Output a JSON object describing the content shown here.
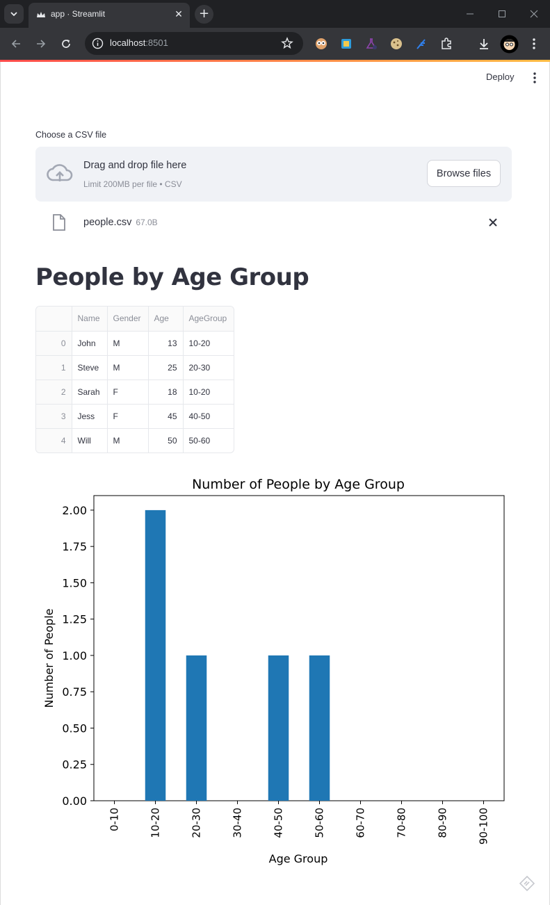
{
  "browser": {
    "tab_title": "app · Streamlit",
    "url_host": "localhost",
    "url_port": ":8501"
  },
  "app_header": {
    "deploy_label": "Deploy"
  },
  "uploader": {
    "label": "Choose a CSV file",
    "drop_title": "Drag and drop file here",
    "drop_subtitle": "Limit 200MB per file • CSV",
    "browse_label": "Browse files",
    "file_name": "people.csv",
    "file_size": "67.0B"
  },
  "page_title": "People by Age Group",
  "dataframe": {
    "columns": [
      "",
      "Name",
      "Gender",
      "Age",
      "AgeGroup"
    ],
    "rows": [
      {
        "index": "0",
        "name": "John",
        "gender": "M",
        "age": "13",
        "group": "10-20"
      },
      {
        "index": "1",
        "name": "Steve",
        "gender": "M",
        "age": "25",
        "group": "20-30"
      },
      {
        "index": "2",
        "name": "Sarah",
        "gender": "F",
        "age": "18",
        "group": "10-20"
      },
      {
        "index": "3",
        "name": "Jess",
        "gender": "F",
        "age": "45",
        "group": "40-50"
      },
      {
        "index": "4",
        "name": "Will",
        "gender": "M",
        "age": "50",
        "group": "50-60"
      }
    ]
  },
  "chart_data": {
    "type": "bar",
    "title": "Number of People by Age Group",
    "xlabel": "Age Group",
    "ylabel": "Number of People",
    "categories": [
      "0-10",
      "10-20",
      "20-30",
      "30-40",
      "40-50",
      "50-60",
      "60-70",
      "70-80",
      "80-90",
      "90-100"
    ],
    "values": [
      0,
      2,
      1,
      0,
      1,
      1,
      0,
      0,
      0,
      0
    ],
    "ylim": [
      0,
      2.1
    ],
    "yticks": [
      "0.00",
      "0.25",
      "0.50",
      "0.75",
      "1.00",
      "1.25",
      "1.50",
      "1.75",
      "2.00"
    ],
    "bar_color": "#1f77b4",
    "grid": false,
    "legend": "none"
  }
}
